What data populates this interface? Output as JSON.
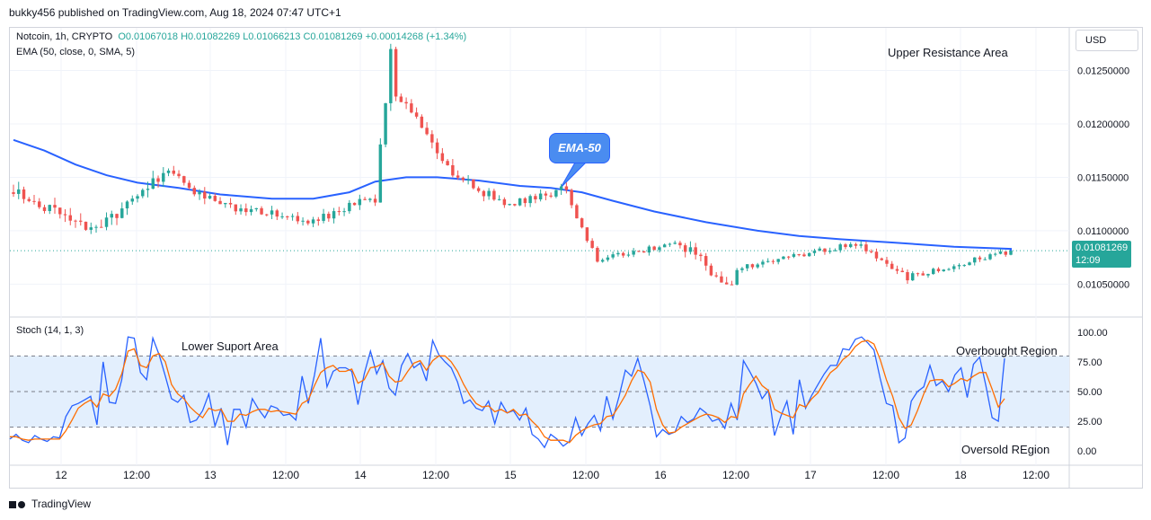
{
  "header": {
    "publisher_line": "bukky456 published on TradingView.com, Aug 18, 2024 07:47 UTC+1"
  },
  "main_legend": {
    "symbol": "Notcoin, 1h, CRYPTO",
    "open": "O0.01067018",
    "high": "H0.01082269",
    "low": "L0.01066213",
    "close": "C0.01081269",
    "change": "+0.00014268 (+1.34%)",
    "ema_label": "EMA (50, close, 0, SMA, 5)"
  },
  "price_scale": {
    "currency": "USD",
    "current_price": "0.01081269",
    "countdown": "12:09"
  },
  "stoch_legend": {
    "label": "Stoch (14, 1, 3)"
  },
  "annotations": {
    "upper_resistance": "Upper Resistance Area",
    "lower_support": "Lower Suport Area",
    "ema_callout": "EMA-50",
    "overbought": "Overbought Region",
    "oversold": "Oversold REgion"
  },
  "footer": {
    "brand": "TradingView"
  },
  "colors": {
    "bull": "#26a69a",
    "bear": "#ef5350",
    "ema": "#2962ff",
    "stoch_k": "#2962ff",
    "stoch_d": "#ff6d00",
    "stoch_band": "#e3effd",
    "grid": "#f0f3fa"
  },
  "chart_data": [
    {
      "type": "candlestick",
      "title": "Notcoin, 1h, CRYPTO",
      "ylim": [
        0.0102,
        0.0129
      ],
      "y_ticks": [
        "0.01050000",
        "0.01100000",
        "0.01150000",
        "0.01200000",
        "0.01250000"
      ],
      "x_ticks": [
        "12",
        "12:00",
        "13",
        "12:00",
        "14",
        "12:00",
        "15",
        "12:00",
        "16",
        "12:00",
        "17",
        "12:00",
        "18",
        "12:00"
      ],
      "last_price": 0.01081269,
      "segments": [
        {
          "bars": 16,
          "from": 0.01136,
          "to": 0.011,
          "noise": 0.00012
        },
        {
          "bars": 14,
          "from": 0.011,
          "to": 0.01155,
          "noise": 0.00012
        },
        {
          "bars": 10,
          "from": 0.01155,
          "to": 0.01125,
          "noise": 9e-05
        },
        {
          "bars": 18,
          "from": 0.01125,
          "to": 0.01108,
          "noise": 8e-05
        },
        {
          "bars": 12,
          "from": 0.0111,
          "to": 0.0113,
          "noise": 8e-05
        },
        {
          "bars": 4,
          "from": 0.0113,
          "to": 0.01265,
          "noise": 0.00012
        },
        {
          "bars": 12,
          "from": 0.0123,
          "to": 0.01155,
          "noise": 0.0001
        },
        {
          "bars": 10,
          "from": 0.0115,
          "to": 0.01125,
          "noise": 8e-05
        },
        {
          "bars": 12,
          "from": 0.01125,
          "to": 0.0114,
          "noise": 8e-05
        },
        {
          "bars": 6,
          "from": 0.01125,
          "to": 0.0107,
          "noise": 6e-05
        },
        {
          "bars": 16,
          "from": 0.01075,
          "to": 0.01088,
          "noise": 5e-05
        },
        {
          "bars": 10,
          "from": 0.01085,
          "to": 0.01045,
          "noise": 0.0001
        },
        {
          "bars": 24,
          "from": 0.01065,
          "to": 0.01088,
          "noise": 5e-05
        },
        {
          "bars": 10,
          "from": 0.01085,
          "to": 0.01055,
          "noise": 6e-05
        },
        {
          "bars": 20,
          "from": 0.01058,
          "to": 0.01081,
          "noise": 5e-05
        }
      ],
      "ema50": [
        [
          0,
          0.01185
        ],
        [
          6,
          0.01175
        ],
        [
          12,
          0.01162
        ],
        [
          18,
          0.01152
        ],
        [
          24,
          0.01145
        ],
        [
          32,
          0.0114
        ],
        [
          40,
          0.01134
        ],
        [
          50,
          0.0113
        ],
        [
          58,
          0.0113
        ],
        [
          65,
          0.01136
        ],
        [
          70,
          0.01146
        ],
        [
          76,
          0.0115
        ],
        [
          82,
          0.0115
        ],
        [
          90,
          0.01147
        ],
        [
          98,
          0.01142
        ],
        [
          104,
          0.0114
        ],
        [
          110,
          0.01136
        ],
        [
          116,
          0.01128
        ],
        [
          124,
          0.01118
        ],
        [
          134,
          0.01108
        ],
        [
          144,
          0.011
        ],
        [
          152,
          0.01095
        ],
        [
          160,
          0.01092
        ],
        [
          170,
          0.01089
        ],
        [
          182,
          0.01085
        ],
        [
          194,
          0.01083
        ],
        [
          206,
          0.01081
        ]
      ]
    },
    {
      "type": "line",
      "title": "Stoch (14, 1, 3)",
      "ylim": [
        -12,
        112
      ],
      "y_ticks": [
        "100.00",
        "75.00",
        "50.00",
        "25.00",
        "0.00"
      ],
      "band": [
        20,
        80
      ],
      "mid_line": 50,
      "series": [
        {
          "key": "k",
          "values": [
            10,
            14,
            9,
            7,
            13,
            10,
            8,
            12,
            11,
            29,
            38,
            40,
            43,
            46,
            22,
            75,
            41,
            40,
            60,
            96,
            95,
            66,
            60,
            95,
            81,
            63,
            44,
            41,
            47,
            24,
            26,
            34,
            48,
            21,
            36,
            5,
            35,
            35,
            20,
            44,
            35,
            28,
            38,
            36,
            30,
            31,
            26,
            63,
            40,
            64,
            95,
            54,
            67,
            70,
            70,
            67,
            39,
            65,
            84,
            65,
            76,
            53,
            47,
            72,
            82,
            70,
            74,
            59,
            93,
            81,
            75,
            70,
            58,
            40,
            43,
            36,
            34,
            42,
            23,
            41,
            32,
            34,
            26,
            36,
            14,
            10,
            3,
            14,
            10,
            4,
            8,
            28,
            13,
            23,
            30,
            17,
            46,
            27,
            46,
            68,
            63,
            78,
            59,
            38,
            12,
            18,
            14,
            16,
            29,
            24,
            27,
            36,
            32,
            25,
            27,
            19,
            40,
            26,
            76,
            67,
            57,
            44,
            51,
            13,
            29,
            42,
            14,
            60,
            36,
            47,
            56,
            65,
            72,
            72,
            86,
            85,
            94,
            96,
            91,
            85,
            61,
            40,
            38,
            7,
            11,
            42,
            50,
            54,
            72,
            55,
            59,
            50,
            64,
            70,
            45,
            73,
            79,
            55,
            28,
            25,
            78
          ]
        },
        {
          "key": "d",
          "values": [
            12,
            12,
            10,
            9,
            10,
            10,
            10,
            10,
            10,
            17,
            26,
            36,
            40,
            43,
            37,
            48,
            46,
            52,
            65,
            84,
            86,
            72,
            70,
            80,
            82,
            75,
            56,
            48,
            44,
            37,
            32,
            28,
            36,
            34,
            35,
            25,
            25,
            31,
            30,
            33,
            35,
            35,
            33,
            34,
            33,
            32,
            31,
            40,
            43,
            55,
            66,
            70,
            72,
            67,
            67,
            69,
            57,
            60,
            70,
            71,
            74,
            63,
            58,
            59,
            67,
            74,
            76,
            68,
            76,
            80,
            80,
            75,
            67,
            56,
            47,
            40,
            37,
            38,
            33,
            35,
            32,
            35,
            30,
            31,
            25,
            20,
            12,
            9,
            9,
            9,
            7,
            13,
            17,
            20,
            22,
            23,
            29,
            30,
            38,
            47,
            59,
            68,
            66,
            58,
            35,
            22,
            15,
            16,
            20,
            23,
            26,
            29,
            31,
            30,
            28,
            24,
            29,
            28,
            48,
            56,
            63,
            55,
            51,
            35,
            32,
            30,
            28,
            39,
            37,
            44,
            49,
            58,
            66,
            70,
            77,
            81,
            88,
            92,
            93,
            90,
            77,
            60,
            46,
            28,
            19,
            22,
            34,
            48,
            59,
            60,
            60,
            54,
            57,
            61,
            59,
            63,
            66,
            66,
            52,
            37,
            44
          ]
        }
      ]
    }
  ]
}
